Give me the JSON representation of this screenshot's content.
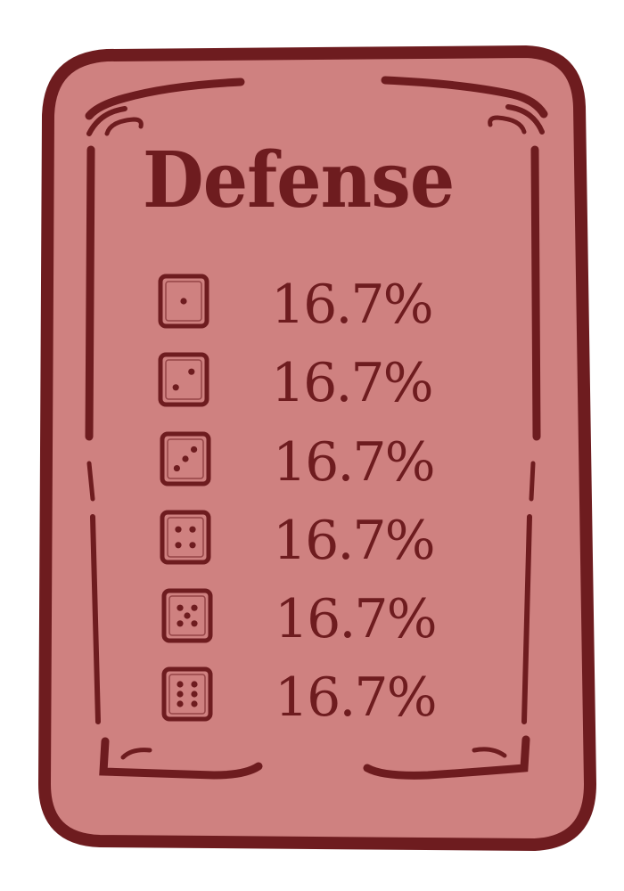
{
  "card": {
    "title": "Defense",
    "colors": {
      "fill": "#cf8180",
      "ink": "#6e1c1f"
    },
    "odds": [
      {
        "face": 1,
        "icon": "die-face-1-icon",
        "value": "16.7%"
      },
      {
        "face": 2,
        "icon": "die-face-2-icon",
        "value": "16.7%"
      },
      {
        "face": 3,
        "icon": "die-face-3-icon",
        "value": "16.7%"
      },
      {
        "face": 4,
        "icon": "die-face-4-icon",
        "value": "16.7%"
      },
      {
        "face": 5,
        "icon": "die-face-5-icon",
        "value": "16.7%"
      },
      {
        "face": 6,
        "icon": "die-face-6-icon",
        "value": "16.7%"
      }
    ]
  }
}
